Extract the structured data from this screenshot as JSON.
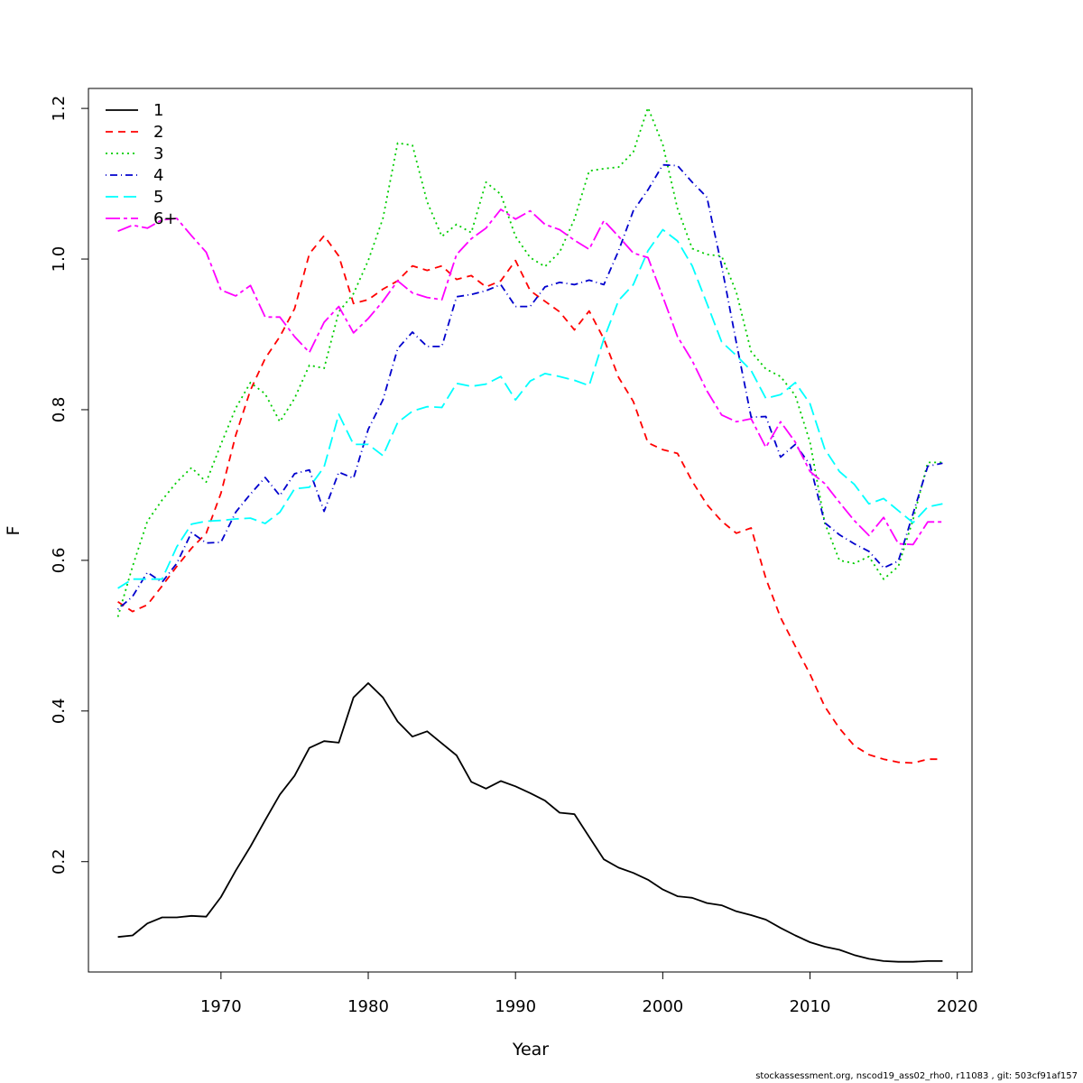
{
  "chart_data": {
    "type": "line",
    "xlabel": "Year",
    "ylabel": "F",
    "xlim": [
      1961,
      2021
    ],
    "ylim": [
      0.0535,
      1.2265
    ],
    "x_ticks": [
      1970,
      1980,
      1990,
      2000,
      2010,
      2020
    ],
    "y_ticks": [
      0.2,
      0.4,
      0.6,
      0.8,
      1.0,
      1.2
    ],
    "y_tick_labels": [
      "0.2",
      "0.4",
      "0.6",
      "0.8",
      "1.0",
      "1.2"
    ],
    "grid": false,
    "legend_position": "top-left",
    "x": [
      1963,
      1964,
      1965,
      1966,
      1967,
      1968,
      1969,
      1970,
      1971,
      1972,
      1973,
      1974,
      1975,
      1976,
      1977,
      1978,
      1979,
      1980,
      1981,
      1982,
      1983,
      1984,
      1985,
      1986,
      1987,
      1988,
      1989,
      1990,
      1991,
      1992,
      1993,
      1994,
      1995,
      1996,
      1997,
      1998,
      1999,
      2000,
      2001,
      2002,
      2003,
      2004,
      2005,
      2006,
      2007,
      2008,
      2009,
      2010,
      2011,
      2012,
      2013,
      2014,
      2015,
      2016,
      2017,
      2018,
      2019
    ],
    "series": [
      {
        "name": "1",
        "color": "#000000",
        "dash": "",
        "values": [
          0.1,
          0.102,
          0.118,
          0.126,
          0.126,
          0.128,
          0.127,
          0.153,
          0.188,
          0.22,
          0.255,
          0.289,
          0.314,
          0.351,
          0.36,
          0.358,
          0.418,
          0.437,
          0.418,
          0.386,
          0.366,
          0.373,
          0.357,
          0.341,
          0.306,
          0.297,
          0.307,
          0.3,
          0.291,
          0.281,
          0.265,
          0.263,
          0.233,
          0.203,
          0.192,
          0.185,
          0.176,
          0.163,
          0.154,
          0.152,
          0.145,
          0.142,
          0.134,
          0.129,
          0.123,
          0.112,
          0.102,
          0.093,
          0.087,
          0.083,
          0.076,
          0.071,
          0.068,
          0.067,
          0.067,
          0.068,
          0.068
        ]
      },
      {
        "name": "2",
        "color": "#ff0000",
        "dash": "8,6",
        "values": [
          0.545,
          0.532,
          0.541,
          0.566,
          0.592,
          0.616,
          0.636,
          0.689,
          0.766,
          0.826,
          0.868,
          0.897,
          0.934,
          1.007,
          1.031,
          1.004,
          0.941,
          0.946,
          0.96,
          0.971,
          0.991,
          0.985,
          0.991,
          0.973,
          0.978,
          0.963,
          0.971,
          0.998,
          0.958,
          0.944,
          0.93,
          0.906,
          0.931,
          0.894,
          0.843,
          0.811,
          0.756,
          0.747,
          0.742,
          0.705,
          0.674,
          0.652,
          0.636,
          0.643,
          0.576,
          0.524,
          0.486,
          0.449,
          0.406,
          0.377,
          0.354,
          0.342,
          0.336,
          0.332,
          0.331,
          0.336,
          0.336
        ]
      },
      {
        "name": "3",
        "color": "#00cd00",
        "dash": "2,4",
        "values": [
          0.525,
          0.592,
          0.652,
          0.68,
          0.704,
          0.723,
          0.704,
          0.754,
          0.802,
          0.836,
          0.821,
          0.784,
          0.815,
          0.859,
          0.855,
          0.93,
          0.954,
          0.998,
          1.054,
          1.154,
          1.151,
          1.076,
          1.03,
          1.046,
          1.035,
          1.102,
          1.086,
          1.03,
          1.002,
          0.99,
          1.009,
          1.053,
          1.117,
          1.12,
          1.122,
          1.142,
          1.201,
          1.152,
          1.067,
          1.014,
          1.006,
          1.004,
          0.956,
          0.877,
          0.854,
          0.844,
          0.819,
          0.757,
          0.65,
          0.6,
          0.596,
          0.605,
          0.575,
          0.592,
          0.654,
          0.73,
          0.73
        ]
      },
      {
        "name": "4",
        "color": "#0000cd",
        "dash": "1,4,8,4",
        "values": [
          0.535,
          0.552,
          0.584,
          0.571,
          0.596,
          0.637,
          0.623,
          0.624,
          0.664,
          0.688,
          0.71,
          0.686,
          0.715,
          0.72,
          0.665,
          0.717,
          0.709,
          0.774,
          0.813,
          0.881,
          0.903,
          0.884,
          0.884,
          0.95,
          0.953,
          0.958,
          0.966,
          0.937,
          0.937,
          0.963,
          0.969,
          0.966,
          0.972,
          0.966,
          1.011,
          1.064,
          1.092,
          1.125,
          1.124,
          1.102,
          1.082,
          0.991,
          0.889,
          0.79,
          0.791,
          0.737,
          0.754,
          0.727,
          0.65,
          0.634,
          0.622,
          0.612,
          0.59,
          0.599,
          0.662,
          0.725,
          0.729
        ]
      },
      {
        "name": "5",
        "color": "#00ffff",
        "dash": "14,6",
        "values": [
          0.563,
          0.575,
          0.575,
          0.575,
          0.618,
          0.648,
          0.652,
          0.653,
          0.655,
          0.656,
          0.649,
          0.664,
          0.695,
          0.697,
          0.724,
          0.794,
          0.754,
          0.754,
          0.739,
          0.783,
          0.798,
          0.804,
          0.803,
          0.835,
          0.831,
          0.834,
          0.844,
          0.813,
          0.838,
          0.848,
          0.844,
          0.839,
          0.832,
          0.894,
          0.945,
          0.966,
          1.011,
          1.039,
          1.024,
          0.991,
          0.941,
          0.89,
          0.872,
          0.852,
          0.815,
          0.82,
          0.836,
          0.808,
          0.748,
          0.718,
          0.701,
          0.675,
          0.682,
          0.666,
          0.65,
          0.671,
          0.675
        ]
      },
      {
        "name": "6+",
        "color": "#ff00ff",
        "dash": "16,4,4,4",
        "values": [
          1.037,
          1.045,
          1.041,
          1.052,
          1.054,
          1.031,
          1.009,
          0.959,
          0.951,
          0.965,
          0.923,
          0.923,
          0.897,
          0.876,
          0.916,
          0.937,
          0.902,
          0.921,
          0.944,
          0.971,
          0.955,
          0.949,
          0.946,
          1.006,
          1.027,
          1.041,
          1.066,
          1.053,
          1.064,
          1.046,
          1.039,
          1.025,
          1.013,
          1.051,
          1.03,
          1.008,
          1.002,
          0.95,
          0.897,
          0.865,
          0.825,
          0.793,
          0.784,
          0.788,
          0.75,
          0.784,
          0.757,
          0.718,
          0.702,
          0.677,
          0.653,
          0.633,
          0.657,
          0.622,
          0.621,
          0.651,
          0.651
        ]
      }
    ]
  },
  "footer_text": "stockassessment.org, nscod19_ass02_rho0, r11083 , git: 503cf91af157"
}
